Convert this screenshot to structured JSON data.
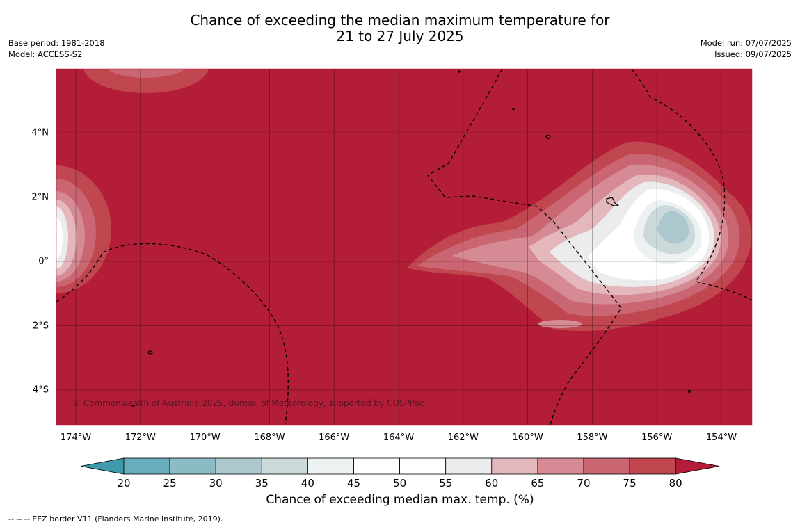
{
  "header": {
    "title_line1": "Chance of exceeding the median maximum temperature for",
    "title_line2": "21 to 27 July 2025",
    "base_period": "Base period: 1981-2018",
    "model": "Model: ACCESS-S2",
    "model_run": "Model run: 07/07/2025",
    "issued": "Issued: 09/07/2025"
  },
  "map": {
    "x_ticks": [
      "174°W",
      "172°W",
      "170°W",
      "168°W",
      "166°W",
      "164°W",
      "162°W",
      "160°W",
      "158°W",
      "156°W",
      "154°W"
    ],
    "y_ticks": [
      "4°N",
      "2°N",
      "0°",
      "2°S",
      "4°S"
    ],
    "copyright": "© Commonwealth of Australia 2025, Bureau of Meteorology, supported by COSPPac",
    "background_color": "#b31d38"
  },
  "colorbar": {
    "labels": [
      "20",
      "25",
      "30",
      "35",
      "40",
      "45",
      "50",
      "55",
      "60",
      "65",
      "70",
      "75",
      "80"
    ],
    "colors": [
      "#3e9aaa",
      "#68adbd",
      "#8bbcc6",
      "#aac8cd",
      "#cbd9db",
      "#ecf1f2",
      "#ffffff",
      "#ffffff",
      "#ececec",
      "#e3b7bc",
      "#d68a94",
      "#c96671",
      "#c0464f",
      "#b31d38"
    ],
    "title": "Chance of exceeding median max. temp. (%)"
  },
  "footnote": "--  --  -- EEZ border V11 (Flanders Marine Institute, 2019)."
}
